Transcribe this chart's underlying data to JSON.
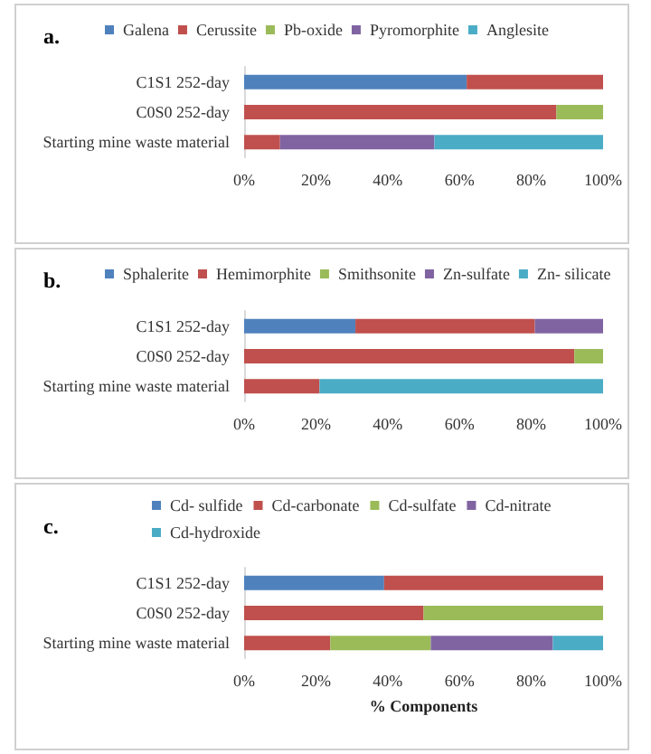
{
  "chart_data": [
    {
      "type": "bar",
      "orientation": "horizontal",
      "stacked": true,
      "title": "a.",
      "legend": "top",
      "grid": false,
      "categories": [
        "C1S1 252-day",
        "C0S0 252-day",
        "Starting mine waste material"
      ],
      "xlim": [
        0,
        100
      ],
      "xticks": [
        {
          "value": 0,
          "label": "0%"
        },
        {
          "value": 20,
          "label": "20%"
        },
        {
          "value": 40,
          "label": "40%"
        },
        {
          "value": 60,
          "label": "60%"
        },
        {
          "value": 80,
          "label": "80%"
        },
        {
          "value": 100,
          "label": "100%"
        }
      ],
      "series": [
        {
          "name": "Galena",
          "color": "#4f81bd",
          "values": [
            62,
            0,
            0
          ]
        },
        {
          "name": "Cerussite",
          "color": "#c0504d",
          "values": [
            38,
            87,
            10
          ]
        },
        {
          "name": "Pb-oxide",
          "color": "#9bbb59",
          "values": [
            0,
            13,
            0
          ]
        },
        {
          "name": "Pyromorphite",
          "color": "#8064a2",
          "values": [
            0,
            0,
            43
          ]
        },
        {
          "name": "Anglesite",
          "color": "#4bacc6",
          "values": [
            0,
            0,
            47
          ]
        }
      ]
    },
    {
      "type": "bar",
      "orientation": "horizontal",
      "stacked": true,
      "title": "b.",
      "legend": "top",
      "grid": false,
      "categories": [
        "C1S1 252-day",
        "C0S0 252-day",
        "Starting mine waste material"
      ],
      "xlim": [
        0,
        100
      ],
      "xticks": [
        {
          "value": 0,
          "label": "0%"
        },
        {
          "value": 20,
          "label": "20%"
        },
        {
          "value": 40,
          "label": "40%"
        },
        {
          "value": 60,
          "label": "60%"
        },
        {
          "value": 80,
          "label": "80%"
        },
        {
          "value": 100,
          "label": "100%"
        }
      ],
      "series": [
        {
          "name": "Sphalerite",
          "color": "#4f81bd",
          "values": [
            31,
            0,
            0
          ]
        },
        {
          "name": "Hemimorphite",
          "color": "#c0504d",
          "values": [
            50,
            92,
            21
          ]
        },
        {
          "name": "Smithsonite",
          "color": "#9bbb59",
          "values": [
            0,
            8,
            0
          ]
        },
        {
          "name": "Zn-sulfate",
          "color": "#8064a2",
          "values": [
            19,
            0,
            0
          ]
        },
        {
          "name": "Zn- silicate",
          "color": "#4bacc6",
          "values": [
            0,
            0,
            79
          ]
        }
      ]
    },
    {
      "type": "bar",
      "orientation": "horizontal",
      "stacked": true,
      "title": "c.",
      "xlabel": "% Components",
      "legend": "top",
      "grid": false,
      "categories": [
        "C1S1 252-day",
        "C0S0 252-day",
        "Starting mine waste material"
      ],
      "xlim": [
        0,
        100
      ],
      "xticks": [
        {
          "value": 0,
          "label": "0%"
        },
        {
          "value": 20,
          "label": "20%"
        },
        {
          "value": 40,
          "label": "40%"
        },
        {
          "value": 60,
          "label": "60%"
        },
        {
          "value": 80,
          "label": "80%"
        },
        {
          "value": 100,
          "label": "100%"
        }
      ],
      "series": [
        {
          "name": "Cd- sulfide",
          "color": "#4f81bd",
          "values": [
            39,
            0,
            0
          ]
        },
        {
          "name": "Cd-carbonate",
          "color": "#c0504d",
          "values": [
            61,
            50,
            24
          ]
        },
        {
          "name": "Cd-sulfate",
          "color": "#9bbb59",
          "values": [
            0,
            50,
            28
          ]
        },
        {
          "name": "Cd-nitrate",
          "color": "#8064a2",
          "values": [
            0,
            0,
            34
          ]
        },
        {
          "name": "Cd-hydroxide",
          "color": "#4bacc6",
          "values": [
            0,
            0,
            14
          ]
        }
      ]
    }
  ]
}
